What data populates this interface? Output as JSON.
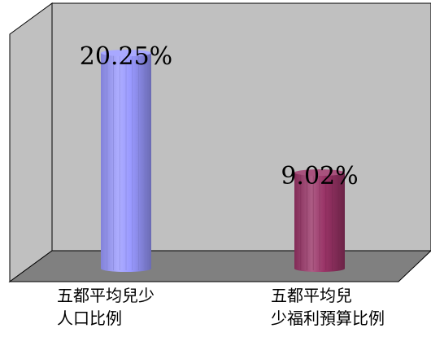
{
  "chart_data": {
    "type": "bar",
    "style": "3d-cylinder",
    "categories": [
      "五都平均兒少\n人口比例",
      "五都平均兒\n少福利預算比例"
    ],
    "values": [
      20.25,
      9.02
    ],
    "data_labels": [
      "20.25%",
      "9.02%"
    ],
    "ylim": [
      0,
      25
    ],
    "grid": false,
    "legend": "none",
    "colors": {
      "wall": "#c0c0c0",
      "floor": "#808080",
      "bar_1": "#9999ff",
      "bar_2": "#993366"
    }
  }
}
